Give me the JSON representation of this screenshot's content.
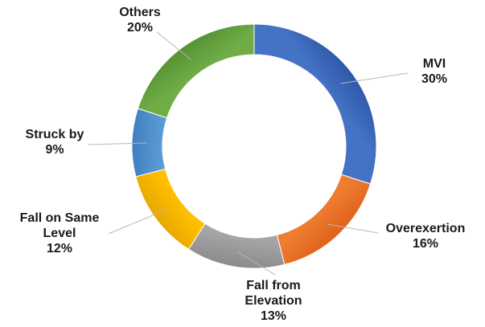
{
  "chart_data": {
    "type": "pie",
    "donut": true,
    "legend": "none",
    "categories": [
      "MVI",
      "Overexertion",
      "Fall from Elevation",
      "Fall on Same Level",
      "Struck by",
      "Others"
    ],
    "values": [
      30,
      16,
      13,
      12,
      9,
      20
    ],
    "value_labels": [
      "30%",
      "16%",
      "13%",
      "12%",
      "9%",
      "20%"
    ],
    "label_lines": [
      [
        "MVI"
      ],
      [
        "Overexertion"
      ],
      [
        "Fall from",
        "Elevation"
      ],
      [
        "Fall on Same",
        "Level"
      ],
      [
        "Struck by"
      ],
      [
        "Others"
      ]
    ],
    "colors": [
      "#4472C4",
      "#ED7D31",
      "#A5A5A5",
      "#FFC000",
      "#5B9BD5",
      "#70AD47"
    ],
    "colors_dark": [
      "#2F57A8",
      "#E0621A",
      "#8A8A8A",
      "#E6A800",
      "#3F7FBF",
      "#549234"
    ]
  }
}
